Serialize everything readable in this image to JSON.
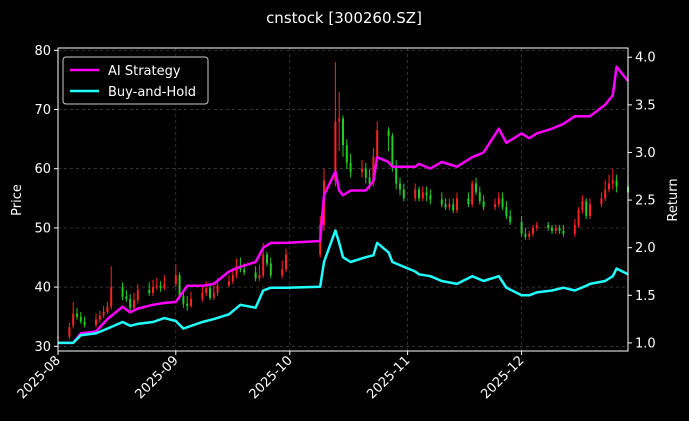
{
  "chart_data": {
    "type": "line",
    "title": "cnstock [300260.SZ]",
    "ylabel_left": "Price",
    "ylabel_right": "Return",
    "x_ticks": [
      "2025-08",
      "2025-09",
      "2025-10",
      "2025-11",
      "2025-12"
    ],
    "x_range": [
      "2025-08-01",
      "2025-12-29"
    ],
    "y_left_ticks": [
      30,
      40,
      50,
      60,
      70,
      80
    ],
    "y_left_range": [
      29.2,
      80.4
    ],
    "y_right_ticks": [
      1.0,
      1.5,
      2.0,
      2.5,
      3.0,
      3.5,
      4.0
    ],
    "y_right_range": [
      0.915,
      4.097
    ],
    "grid": true,
    "legend_position": "top-left",
    "series": [
      {
        "name": "AI Strategy",
        "axis": "right",
        "color": "#ff00ff",
        "x": [
          "2025-08-01",
          "2025-08-05",
          "2025-08-07",
          "2025-08-11",
          "2025-08-14",
          "2025-08-18",
          "2025-08-20",
          "2025-08-22",
          "2025-08-26",
          "2025-08-29",
          "2025-09-01",
          "2025-09-04",
          "2025-09-08",
          "2025-09-11",
          "2025-09-15",
          "2025-09-18",
          "2025-09-22",
          "2025-09-24",
          "2025-09-26",
          "2025-09-30",
          "2025-10-09",
          "2025-10-10",
          "2025-10-13",
          "2025-10-14",
          "2025-10-15",
          "2025-10-17",
          "2025-10-21",
          "2025-10-23",
          "2025-10-24",
          "2025-10-27",
          "2025-10-28",
          "2025-11-03",
          "2025-11-04",
          "2025-11-07",
          "2025-11-10",
          "2025-11-14",
          "2025-11-18",
          "2025-11-21",
          "2025-11-25",
          "2025-11-27",
          "2025-12-01",
          "2025-12-03",
          "2025-12-05",
          "2025-12-09",
          "2025-12-12",
          "2025-12-15",
          "2025-12-18",
          "2025-12-19",
          "2025-12-23",
          "2025-12-25",
          "2025-12-26",
          "2025-12-29"
        ],
        "values": [
          1.0,
          1.0,
          1.1,
          1.12,
          1.25,
          1.38,
          1.32,
          1.36,
          1.4,
          1.42,
          1.43,
          1.6,
          1.6,
          1.62,
          1.75,
          1.8,
          1.85,
          2.0,
          2.05,
          2.05,
          2.07,
          2.55,
          2.8,
          2.6,
          2.55,
          2.6,
          2.6,
          2.7,
          2.95,
          2.9,
          2.85,
          2.85,
          2.88,
          2.83,
          2.9,
          2.85,
          2.95,
          3.0,
          3.25,
          3.1,
          3.2,
          3.15,
          3.2,
          3.25,
          3.3,
          3.38,
          3.38,
          3.38,
          3.5,
          3.6,
          3.9,
          3.75
        ]
      },
      {
        "name": "Buy-and-Hold",
        "axis": "right",
        "color": "#22ffff",
        "x": [
          "2025-08-01",
          "2025-08-05",
          "2025-08-07",
          "2025-08-11",
          "2025-08-14",
          "2025-08-18",
          "2025-08-20",
          "2025-08-22",
          "2025-08-26",
          "2025-08-29",
          "2025-09-01",
          "2025-09-03",
          "2025-09-08",
          "2025-09-11",
          "2025-09-15",
          "2025-09-18",
          "2025-09-22",
          "2025-09-24",
          "2025-09-26",
          "2025-09-30",
          "2025-10-09",
          "2025-10-10",
          "2025-10-13",
          "2025-10-14",
          "2025-10-15",
          "2025-10-17",
          "2025-10-21",
          "2025-10-23",
          "2025-10-24",
          "2025-10-27",
          "2025-10-28",
          "2025-11-03",
          "2025-11-04",
          "2025-11-07",
          "2025-11-10",
          "2025-11-14",
          "2025-11-18",
          "2025-11-21",
          "2025-11-25",
          "2025-11-27",
          "2025-12-01",
          "2025-12-03",
          "2025-12-05",
          "2025-12-09",
          "2025-12-12",
          "2025-12-15",
          "2025-12-18",
          "2025-12-19",
          "2025-12-23",
          "2025-12-25",
          "2025-12-26",
          "2025-12-29"
        ],
        "values": [
          1.0,
          1.0,
          1.08,
          1.1,
          1.15,
          1.22,
          1.18,
          1.2,
          1.22,
          1.26,
          1.23,
          1.15,
          1.22,
          1.25,
          1.3,
          1.4,
          1.37,
          1.55,
          1.58,
          1.58,
          1.59,
          1.85,
          2.18,
          2.05,
          1.9,
          1.85,
          1.9,
          1.92,
          2.05,
          1.95,
          1.85,
          1.75,
          1.72,
          1.7,
          1.65,
          1.62,
          1.7,
          1.65,
          1.7,
          1.58,
          1.5,
          1.5,
          1.53,
          1.55,
          1.58,
          1.55,
          1.6,
          1.62,
          1.65,
          1.7,
          1.78,
          1.72
        ]
      },
      {
        "name": "",
        "type": "candlestick",
        "axis": "left",
        "color_up": "#ff2222",
        "color_down": "#22cc22",
        "x": [
          "2025-08-01",
          "2025-08-04",
          "2025-08-05",
          "2025-08-06",
          "2025-08-07",
          "2025-08-08",
          "2025-08-11",
          "2025-08-12",
          "2025-08-13",
          "2025-08-14",
          "2025-08-15",
          "2025-08-18",
          "2025-08-19",
          "2025-08-20",
          "2025-08-21",
          "2025-08-22",
          "2025-08-25",
          "2025-08-26",
          "2025-08-27",
          "2025-08-28",
          "2025-08-29",
          "2025-09-01",
          "2025-09-02",
          "2025-09-03",
          "2025-09-04",
          "2025-09-05",
          "2025-09-08",
          "2025-09-09",
          "2025-09-10",
          "2025-09-11",
          "2025-09-12",
          "2025-09-15",
          "2025-09-16",
          "2025-09-17",
          "2025-09-18",
          "2025-09-19",
          "2025-09-22",
          "2025-09-23",
          "2025-09-24",
          "2025-09-25",
          "2025-09-26",
          "2025-09-29",
          "2025-09-30",
          "2025-10-09",
          "2025-10-10",
          "2025-10-13",
          "2025-10-14",
          "2025-10-15",
          "2025-10-16",
          "2025-10-17",
          "2025-10-20",
          "2025-10-21",
          "2025-10-22",
          "2025-10-23",
          "2025-10-24",
          "2025-10-27",
          "2025-10-28",
          "2025-10-29",
          "2025-10-30",
          "2025-10-31",
          "2025-11-03",
          "2025-11-04",
          "2025-11-05",
          "2025-11-06",
          "2025-11-07",
          "2025-11-10",
          "2025-11-11",
          "2025-11-12",
          "2025-11-13",
          "2025-11-14",
          "2025-11-17",
          "2025-11-18",
          "2025-11-19",
          "2025-11-20",
          "2025-11-21",
          "2025-11-24",
          "2025-11-25",
          "2025-11-26",
          "2025-11-27",
          "2025-11-28",
          "2025-12-01",
          "2025-12-02",
          "2025-12-03",
          "2025-12-04",
          "2025-12-05",
          "2025-12-08",
          "2025-12-09",
          "2025-12-10",
          "2025-12-11",
          "2025-12-12",
          "2025-12-15",
          "2025-12-16",
          "2025-12-17",
          "2025-12-18",
          "2025-12-19",
          "2025-12-22",
          "2025-12-23",
          "2025-12-24",
          "2025-12-25",
          "2025-12-26",
          "2025-12-29"
        ],
        "open": [
          31.5,
          31.6,
          33.5,
          35.5,
          35.0,
          34.2,
          33.6,
          34.5,
          35.2,
          35.8,
          36.7,
          40.0,
          38.4,
          38.0,
          36.5,
          37.8,
          39.5,
          39.0,
          40.0,
          40.2,
          39.8,
          40.5,
          42.0,
          38.5,
          37.2,
          36.8,
          38.0,
          39.0,
          39.8,
          38.2,
          39.0,
          40.3,
          41.0,
          42.0,
          43.5,
          43.0,
          42.5,
          41.5,
          42.0,
          45.5,
          44.0,
          42.0,
          43.0,
          45.5,
          50.5,
          58.0,
          68.0,
          68.5,
          64.0,
          61.0,
          59.5,
          60.0,
          58.5,
          57.5,
          62.0,
          66.5,
          65.5,
          60.5,
          57.5,
          56.5,
          55.0,
          56.5,
          55.0,
          56.0,
          55.5,
          54.8,
          54.0,
          53.5,
          54.0,
          53.0,
          55.0,
          54.0,
          57.5,
          56.0,
          54.5,
          53.5,
          54.0,
          55.0,
          53.5,
          52.0,
          51.0,
          49.0,
          48.5,
          49.0,
          50.0,
          50.5,
          50.0,
          49.5,
          50.0,
          49.5,
          49.0,
          50.5,
          53.0,
          54.5,
          52.0,
          54.0,
          55.0,
          56.5,
          57.5,
          58.0,
          57.0
        ],
        "close": [
          31.6,
          33.2,
          35.5,
          35.0,
          34.2,
          33.6,
          34.5,
          35.2,
          35.8,
          36.7,
          40.0,
          38.4,
          38.0,
          36.5,
          37.8,
          39.5,
          39.0,
          40.0,
          40.2,
          39.8,
          40.5,
          42.0,
          38.5,
          37.2,
          36.8,
          38.0,
          39.0,
          39.8,
          38.2,
          39.0,
          40.3,
          41.0,
          42.0,
          43.5,
          43.0,
          42.5,
          41.5,
          42.0,
          45.5,
          44.0,
          42.0,
          43.0,
          45.5,
          50.5,
          58.0,
          68.0,
          68.5,
          64.0,
          61.0,
          59.5,
          60.0,
          58.5,
          57.5,
          62.0,
          66.5,
          65.5,
          60.5,
          57.5,
          56.5,
          55.0,
          56.5,
          55.0,
          56.0,
          55.5,
          54.8,
          54.0,
          53.5,
          54.0,
          53.0,
          55.0,
          54.0,
          57.5,
          56.0,
          54.5,
          53.5,
          54.0,
          55.0,
          53.5,
          52.0,
          51.0,
          49.0,
          48.5,
          49.0,
          50.0,
          50.5,
          50.0,
          49.5,
          50.0,
          49.5,
          49.0,
          50.5,
          53.0,
          54.5,
          52.0,
          54.0,
          55.0,
          56.5,
          57.5,
          58.0,
          57.0,
          56.0
        ],
        "high": [
          32.2,
          34.0,
          37.5,
          36.5,
          35.8,
          35.0,
          35.5,
          36.0,
          36.8,
          37.5,
          43.5,
          40.8,
          39.5,
          38.8,
          39.0,
          40.5,
          40.8,
          41.2,
          41.5,
          41.0,
          42.0,
          43.8,
          42.5,
          39.5,
          38.5,
          39.2,
          40.2,
          41.0,
          40.5,
          40.2,
          41.5,
          42.0,
          43.2,
          44.8,
          45.0,
          44.0,
          43.5,
          43.8,
          47.5,
          46.0,
          45.0,
          44.5,
          46.5,
          52.0,
          60.0,
          78.0,
          73.0,
          69.0,
          65.0,
          62.5,
          61.5,
          61.0,
          60.0,
          63.5,
          68.0,
          67.0,
          66.0,
          61.5,
          58.5,
          57.5,
          57.5,
          57.0,
          57.0,
          57.0,
          56.5,
          56.0,
          55.0,
          55.0,
          55.0,
          56.0,
          56.0,
          58.0,
          58.5,
          57.0,
          55.5,
          55.0,
          56.0,
          56.0,
          54.5,
          53.0,
          52.0,
          50.0,
          49.5,
          50.5,
          51.0,
          51.0,
          50.5,
          50.5,
          50.5,
          50.5,
          51.5,
          53.5,
          55.5,
          55.0,
          55.0,
          56.0,
          58.0,
          59.0,
          60.0,
          59.0,
          58.0
        ],
        "low": [
          31.0,
          31.2,
          33.0,
          34.5,
          33.8,
          33.2,
          33.2,
          34.0,
          34.8,
          35.5,
          36.2,
          37.8,
          37.5,
          36.0,
          36.2,
          37.2,
          38.5,
          38.5,
          39.5,
          39.2,
          39.5,
          40.0,
          38.0,
          36.5,
          36.0,
          36.5,
          37.5,
          38.5,
          37.8,
          37.8,
          38.5,
          40.0,
          40.5,
          41.5,
          42.5,
          42.0,
          41.0,
          41.0,
          41.5,
          43.5,
          41.5,
          41.5,
          42.5,
          45.0,
          49.5,
          57.0,
          63.0,
          62.0,
          60.0,
          58.5,
          58.5,
          57.5,
          56.5,
          57.0,
          61.0,
          63.0,
          59.5,
          56.5,
          55.5,
          54.5,
          54.5,
          54.5,
          54.5,
          54.5,
          54.0,
          53.5,
          53.0,
          53.0,
          52.5,
          52.5,
          53.5,
          53.5,
          55.5,
          54.0,
          53.0,
          53.0,
          53.5,
          53.0,
          51.5,
          50.5,
          48.5,
          48.0,
          48.0,
          48.5,
          49.5,
          49.5,
          49.0,
          49.0,
          49.0,
          48.5,
          48.5,
          50.0,
          52.5,
          51.5,
          51.5,
          53.5,
          54.5,
          56.0,
          56.5,
          56.0,
          55.5
        ]
      }
    ]
  }
}
